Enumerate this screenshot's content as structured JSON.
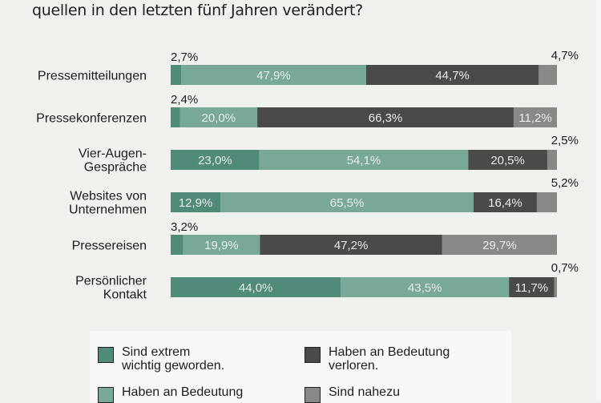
{
  "colors": {
    "background": "#eef1ec",
    "extrem_wichtig": "#4f8a7a",
    "an_bedeutung_gewonnen": "#78a898",
    "an_bedeutung_verloren": "#4a4a4a",
    "nahezu_bedeutungslos": "#888888"
  },
  "chart_data": {
    "type": "bar",
    "orientation": "horizontal",
    "stacked": true,
    "title": "quellen in den letzten fünf Jahren verändert?",
    "xlim": [
      0,
      100
    ],
    "unit": "%",
    "categories": [
      [
        "Pressemitteilungen"
      ],
      [
        "Pressekonferenzen"
      ],
      [
        "Vier-Augen-",
        "Gespräche"
      ],
      [
        "Websites von",
        "Unternehmen"
      ],
      [
        "Pressereisen"
      ],
      [
        "Persönlicher",
        "Kontakt"
      ]
    ],
    "series": [
      {
        "name": "Sind extrem wichtig geworden.",
        "color_key": "extrem_wichtig",
        "values": [
          2.7,
          2.4,
          23.0,
          12.9,
          3.2,
          44.0
        ],
        "labels": [
          "2,7%",
          "2,4%",
          "23,0%",
          "12,9%",
          "3,2%",
          "44,0%"
        ]
      },
      {
        "name": "Haben an Bedeutung gewonnen.",
        "color_key": "an_bedeutung_gewonnen",
        "values": [
          47.9,
          20.0,
          54.1,
          65.5,
          19.9,
          43.5
        ],
        "labels": [
          "47,9%",
          "20,0%",
          "54,1%",
          "65,5%",
          "19,9%",
          "43,5%"
        ]
      },
      {
        "name": "Haben an Bedeutung verloren.",
        "color_key": "an_bedeutung_verloren",
        "values": [
          44.7,
          66.3,
          20.5,
          16.4,
          47.2,
          11.7
        ],
        "labels": [
          "44,7%",
          "66,3%",
          "20,5%",
          "16,4%",
          "47,2%",
          "11,7%"
        ]
      },
      {
        "name": "Sind nahezu bedeutungslos.",
        "color_key": "nahezu_bedeutungslos",
        "values": [
          4.7,
          11.2,
          2.5,
          5.2,
          29.7,
          0.7
        ],
        "labels": [
          "4,7%",
          "11,2%",
          "2,5%",
          "5,2%",
          "29,7%",
          "0,7%"
        ]
      }
    ],
    "label_outside": [
      [
        true,
        false,
        false,
        true
      ],
      [
        true,
        false,
        false,
        false
      ],
      [
        false,
        false,
        false,
        true
      ],
      [
        false,
        false,
        false,
        true
      ],
      [
        true,
        false,
        false,
        false
      ],
      [
        false,
        false,
        false,
        true
      ]
    ]
  },
  "legend": [
    {
      "text": "Sind extrem\nwichtig geworden.",
      "color_key": "extrem_wichtig"
    },
    {
      "text": "Haben an Bedeutung\nverloren.",
      "color_key": "an_bedeutung_verloren"
    },
    {
      "text": "Haben an Bedeutung",
      "color_key": "an_bedeutung_gewonnen"
    },
    {
      "text": "Sind nahezu",
      "color_key": "nahezu_bedeutungslos"
    }
  ]
}
